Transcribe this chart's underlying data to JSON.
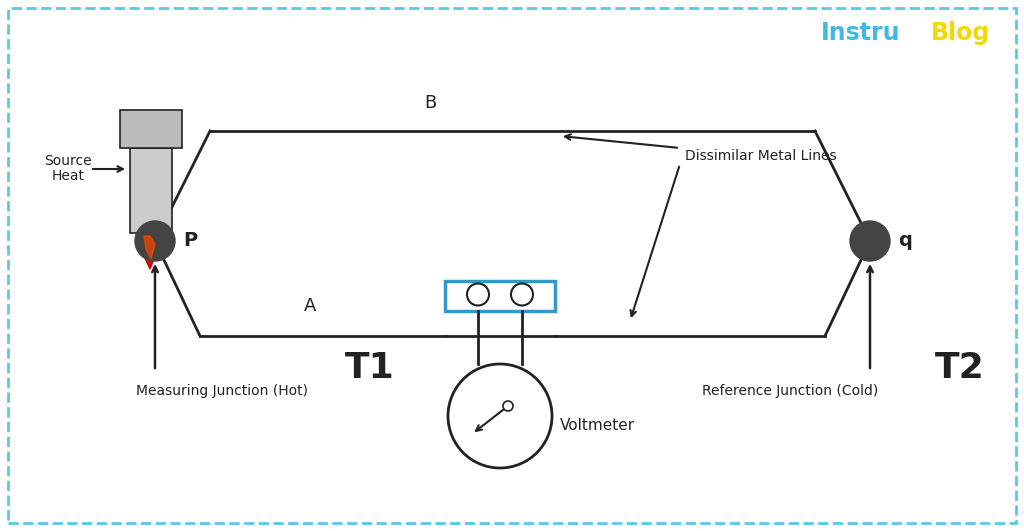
{
  "bg_color": "#ffffff",
  "border_color": "#5bc8e8",
  "title_instru_color": "#42b8e8",
  "title_blog_color": "#f5d800",
  "line_A_label": "A",
  "line_B_label": "B",
  "junction_P_label": "P",
  "junction_q_label": "q",
  "T1_label": "T1",
  "T2_label": "T2",
  "voltmeter_label": "Voltmeter",
  "mj_label": "Measuring Junction (Hot)",
  "rj_label": "Reference Junction (Cold)",
  "hs_label1": "Heat",
  "hs_label2": "Source",
  "dml_label": "Dissimilar Metal Lines",
  "instru_text": "Instru",
  "blog_text": "Blog",
  "dark_color": "#222222",
  "junction_color": "#444444",
  "line_color": "#222222"
}
